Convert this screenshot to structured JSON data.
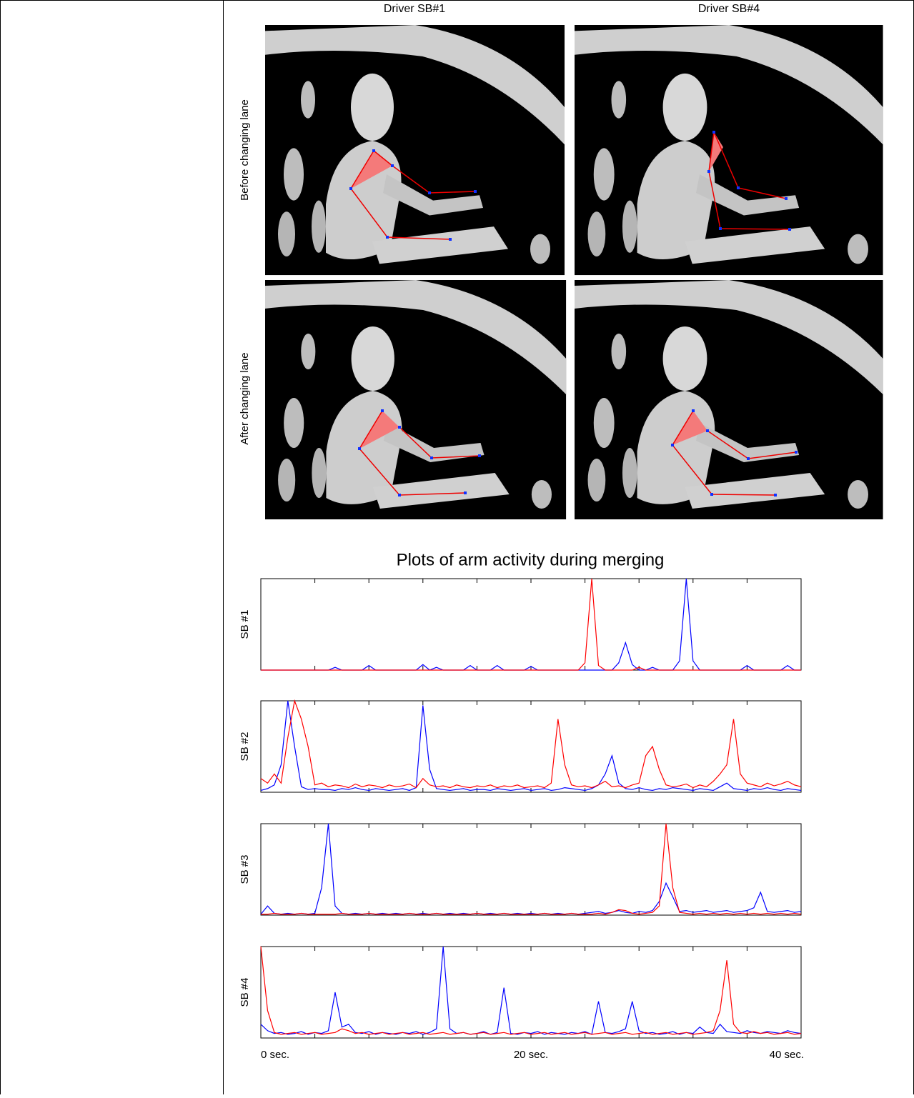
{
  "header": {
    "columns": [
      "Driver SB#1",
      "Driver SB#4"
    ]
  },
  "panels": {
    "row_labels": [
      "Before changing lane",
      "After changing lane"
    ]
  },
  "figure_title": "Plots of arm activity during merging",
  "chart_data": [
    {
      "type": "line",
      "ylabel": "SB #1",
      "xlim": [
        0,
        40
      ],
      "ylim": [
        0,
        1
      ],
      "xticks": [
        0,
        4,
        8,
        12,
        16,
        20,
        24,
        28,
        32,
        36,
        40
      ],
      "x": [
        0,
        0.5,
        1,
        1.5,
        2,
        2.5,
        3,
        3.5,
        4,
        4.5,
        5,
        5.5,
        6,
        6.5,
        7,
        7.5,
        8,
        8.5,
        9,
        9.5,
        10,
        10.5,
        11,
        11.5,
        12,
        12.5,
        13,
        13.5,
        14,
        14.5,
        15,
        15.5,
        16,
        16.5,
        17,
        17.5,
        18,
        18.5,
        19,
        19.5,
        20,
        20.5,
        21,
        21.5,
        22,
        22.5,
        23,
        23.5,
        24,
        24.5,
        25,
        25.5,
        26,
        26.5,
        27,
        27.5,
        28,
        28.5,
        29,
        29.5,
        30,
        30.5,
        31,
        31.5,
        32,
        32.5,
        33,
        33.5,
        34,
        34.5,
        35,
        35.5,
        36,
        36.5,
        37,
        37.5,
        38,
        38.5,
        39,
        39.5,
        40
      ],
      "series": [
        {
          "color": "#0000ff",
          "values": [
            0,
            0,
            0,
            0,
            0,
            0,
            0,
            0,
            0,
            0,
            0,
            0.03,
            0,
            0,
            0,
            0,
            0.05,
            0,
            0,
            0,
            0,
            0,
            0,
            0,
            0.06,
            0,
            0.03,
            0,
            0,
            0,
            0,
            0.05,
            0,
            0,
            0,
            0.05,
            0,
            0,
            0,
            0,
            0.04,
            0,
            0,
            0,
            0,
            0,
            0,
            0,
            0,
            0,
            0,
            0,
            0,
            0.08,
            0.3,
            0.06,
            0,
            0,
            0.03,
            0,
            0,
            0,
            0.1,
            1,
            0.1,
            0,
            0,
            0,
            0,
            0,
            0,
            0,
            0.05,
            0,
            0,
            0,
            0,
            0,
            0.05,
            0,
            0
          ]
        },
        {
          "color": "#ff0000",
          "values": [
            0,
            0,
            0,
            0,
            0,
            0,
            0,
            0,
            0,
            0,
            0,
            0,
            0,
            0,
            0,
            0,
            0,
            0,
            0,
            0,
            0,
            0,
            0,
            0,
            0,
            0,
            0,
            0,
            0,
            0,
            0,
            0,
            0,
            0,
            0,
            0,
            0,
            0,
            0,
            0,
            0,
            0,
            0,
            0,
            0,
            0,
            0,
            0,
            0.08,
            1,
            0.05,
            0,
            0,
            0,
            0,
            0,
            0.03,
            0,
            0,
            0,
            0,
            0,
            0,
            0,
            0,
            0,
            0,
            0,
            0,
            0,
            0,
            0,
            0,
            0,
            0,
            0,
            0,
            0,
            0,
            0,
            0
          ]
        }
      ]
    },
    {
      "type": "line",
      "ylabel": "SB #2",
      "xlim": [
        0,
        40
      ],
      "ylim": [
        0,
        1
      ],
      "xticks": [
        0,
        4,
        8,
        12,
        16,
        20,
        24,
        28,
        32,
        36,
        40
      ],
      "x": [
        0,
        0.5,
        1,
        1.5,
        2,
        2.5,
        3,
        3.5,
        4,
        4.5,
        5,
        5.5,
        6,
        6.5,
        7,
        7.5,
        8,
        8.5,
        9,
        9.5,
        10,
        10.5,
        11,
        11.5,
        12,
        12.5,
        13,
        13.5,
        14,
        14.5,
        15,
        15.5,
        16,
        16.5,
        17,
        17.5,
        18,
        18.5,
        19,
        19.5,
        20,
        20.5,
        21,
        21.5,
        22,
        22.5,
        23,
        23.5,
        24,
        24.5,
        25,
        25.5,
        26,
        26.5,
        27,
        27.5,
        28,
        28.5,
        29,
        29.5,
        30,
        30.5,
        31,
        31.5,
        32,
        32.5,
        33,
        33.5,
        34,
        34.5,
        35,
        35.5,
        36,
        36.5,
        37,
        37.5,
        38,
        38.5,
        39,
        39.5,
        40
      ],
      "series": [
        {
          "color": "#0000ff",
          "values": [
            0.02,
            0.04,
            0.08,
            0.3,
            1,
            0.5,
            0.06,
            0.03,
            0.04,
            0.03,
            0.03,
            0.02,
            0.04,
            0.03,
            0.05,
            0.03,
            0.02,
            0.04,
            0.03,
            0.02,
            0.03,
            0.04,
            0.02,
            0.05,
            0.95,
            0.25,
            0.04,
            0.03,
            0.02,
            0.03,
            0.04,
            0.02,
            0.03,
            0.03,
            0.02,
            0.04,
            0.03,
            0.02,
            0.03,
            0.04,
            0.02,
            0.03,
            0.04,
            0.02,
            0.03,
            0.05,
            0.04,
            0.03,
            0.02,
            0.04,
            0.08,
            0.2,
            0.4,
            0.1,
            0.04,
            0.03,
            0.05,
            0.03,
            0.02,
            0.04,
            0.03,
            0.05,
            0.04,
            0.03,
            0.02,
            0.04,
            0.03,
            0.02,
            0.06,
            0.1,
            0.04,
            0.03,
            0.02,
            0.04,
            0.03,
            0.05,
            0.03,
            0.02,
            0.04,
            0.03,
            0.02
          ]
        },
        {
          "color": "#ff0000",
          "values": [
            0.15,
            0.1,
            0.2,
            0.1,
            0.6,
            1,
            0.8,
            0.5,
            0.08,
            0.1,
            0.06,
            0.08,
            0.07,
            0.05,
            0.09,
            0.06,
            0.08,
            0.07,
            0.05,
            0.08,
            0.06,
            0.07,
            0.09,
            0.05,
            0.15,
            0.08,
            0.06,
            0.07,
            0.05,
            0.08,
            0.06,
            0.05,
            0.07,
            0.06,
            0.08,
            0.05,
            0.07,
            0.06,
            0.08,
            0.05,
            0.06,
            0.07,
            0.05,
            0.1,
            0.8,
            0.3,
            0.08,
            0.06,
            0.07,
            0.05,
            0.08,
            0.12,
            0.06,
            0.07,
            0.05,
            0.08,
            0.1,
            0.4,
            0.5,
            0.25,
            0.08,
            0.06,
            0.07,
            0.09,
            0.05,
            0.08,
            0.06,
            0.12,
            0.2,
            0.3,
            0.8,
            0.2,
            0.1,
            0.08,
            0.06,
            0.1,
            0.07,
            0.09,
            0.12,
            0.08,
            0.06
          ]
        }
      ]
    },
    {
      "type": "line",
      "ylabel": "SB #3",
      "xlim": [
        0,
        40
      ],
      "ylim": [
        0,
        1
      ],
      "xticks": [
        0,
        4,
        8,
        12,
        16,
        20,
        24,
        28,
        32,
        36,
        40
      ],
      "x": [
        0,
        0.5,
        1,
        1.5,
        2,
        2.5,
        3,
        3.5,
        4,
        4.5,
        5,
        5.5,
        6,
        6.5,
        7,
        7.5,
        8,
        8.5,
        9,
        9.5,
        10,
        10.5,
        11,
        11.5,
        12,
        12.5,
        13,
        13.5,
        14,
        14.5,
        15,
        15.5,
        16,
        16.5,
        17,
        17.5,
        18,
        18.5,
        19,
        19.5,
        20,
        20.5,
        21,
        21.5,
        22,
        22.5,
        23,
        23.5,
        24,
        24.5,
        25,
        25.5,
        26,
        26.5,
        27,
        27.5,
        28,
        28.5,
        29,
        29.5,
        30,
        30.5,
        31,
        31.5,
        32,
        32.5,
        33,
        33.5,
        34,
        34.5,
        35,
        35.5,
        36,
        36.5,
        37,
        37.5,
        38,
        38.5,
        39,
        39.5,
        40
      ],
      "series": [
        {
          "color": "#0000ff",
          "values": [
            0.01,
            0.1,
            0.02,
            0.01,
            0.02,
            0.01,
            0.02,
            0.01,
            0.02,
            0.3,
            1,
            0.1,
            0.02,
            0.01,
            0.02,
            0.01,
            0.02,
            0.01,
            0.02,
            0.01,
            0.02,
            0.01,
            0.02,
            0.01,
            0.02,
            0.01,
            0.02,
            0.01,
            0.02,
            0.01,
            0.02,
            0.01,
            0.02,
            0.01,
            0.02,
            0.01,
            0.02,
            0.01,
            0.02,
            0.01,
            0.02,
            0.01,
            0.02,
            0.01,
            0.02,
            0.01,
            0.02,
            0.01,
            0.02,
            0.03,
            0.04,
            0.02,
            0.03,
            0.05,
            0.03,
            0.02,
            0.04,
            0.03,
            0.05,
            0.15,
            0.35,
            0.2,
            0.04,
            0.05,
            0.03,
            0.04,
            0.05,
            0.03,
            0.04,
            0.05,
            0.03,
            0.04,
            0.05,
            0.08,
            0.25,
            0.04,
            0.03,
            0.04,
            0.05,
            0.03,
            0.04
          ]
        },
        {
          "color": "#ff0000",
          "values": [
            0.01,
            0.01,
            0.02,
            0.01,
            0.01,
            0.01,
            0.02,
            0.01,
            0.01,
            0.01,
            0.01,
            0.01,
            0.02,
            0.01,
            0.01,
            0.01,
            0.02,
            0.01,
            0.01,
            0.01,
            0.01,
            0.01,
            0.02,
            0.01,
            0.01,
            0.01,
            0.02,
            0.01,
            0.01,
            0.01,
            0.01,
            0.01,
            0.02,
            0.01,
            0.01,
            0.01,
            0.02,
            0.01,
            0.01,
            0.01,
            0.01,
            0.01,
            0.02,
            0.01,
            0.01,
            0.01,
            0.02,
            0.01,
            0.01,
            0.01,
            0.02,
            0.01,
            0.03,
            0.06,
            0.05,
            0.02,
            0.01,
            0.02,
            0.03,
            0.1,
            1,
            0.3,
            0.03,
            0.02,
            0.01,
            0.02,
            0.01,
            0.02,
            0.01,
            0.02,
            0.01,
            0.02,
            0.01,
            0.02,
            0.01,
            0.02,
            0.01,
            0.02,
            0.01,
            0.02,
            0.01
          ]
        }
      ]
    },
    {
      "type": "line",
      "ylabel": "SB #4",
      "xlim": [
        0,
        40
      ],
      "ylim": [
        0,
        1
      ],
      "xticks": [
        0,
        4,
        8,
        12,
        16,
        20,
        24,
        28,
        32,
        36,
        40
      ],
      "xtick_labels": [
        {
          "value": 0,
          "label": "0 sec."
        },
        {
          "value": 20,
          "label": "20 sec."
        },
        {
          "value": 40,
          "label": "40 sec."
        }
      ],
      "x": [
        0,
        0.5,
        1,
        1.5,
        2,
        2.5,
        3,
        3.5,
        4,
        4.5,
        5,
        5.5,
        6,
        6.5,
        7,
        7.5,
        8,
        8.5,
        9,
        9.5,
        10,
        10.5,
        11,
        11.5,
        12,
        12.5,
        13,
        13.5,
        14,
        14.5,
        15,
        15.5,
        16,
        16.5,
        17,
        17.5,
        18,
        18.5,
        19,
        19.5,
        20,
        20.5,
        21,
        21.5,
        22,
        22.5,
        23,
        23.5,
        24,
        24.5,
        25,
        25.5,
        26,
        26.5,
        27,
        27.5,
        28,
        28.5,
        29,
        29.5,
        30,
        30.5,
        31,
        31.5,
        32,
        32.5,
        33,
        33.5,
        34,
        34.5,
        35,
        35.5,
        36,
        36.5,
        37,
        37.5,
        38,
        38.5,
        39,
        39.5,
        40
      ],
      "series": [
        {
          "color": "#0000ff",
          "values": [
            0.15,
            0.08,
            0.05,
            0.06,
            0.04,
            0.05,
            0.07,
            0.04,
            0.06,
            0.05,
            0.08,
            0.5,
            0.12,
            0.15,
            0.06,
            0.05,
            0.07,
            0.04,
            0.06,
            0.05,
            0.04,
            0.06,
            0.05,
            0.07,
            0.04,
            0.06,
            0.1,
            1,
            0.1,
            0.05,
            0.06,
            0.04,
            0.05,
            0.07,
            0.04,
            0.06,
            0.55,
            0.05,
            0.04,
            0.06,
            0.05,
            0.07,
            0.04,
            0.06,
            0.05,
            0.04,
            0.06,
            0.05,
            0.07,
            0.04,
            0.4,
            0.06,
            0.05,
            0.07,
            0.1,
            0.4,
            0.08,
            0.05,
            0.06,
            0.04,
            0.05,
            0.07,
            0.04,
            0.06,
            0.05,
            0.12,
            0.06,
            0.05,
            0.15,
            0.07,
            0.06,
            0.05,
            0.08,
            0.06,
            0.05,
            0.07,
            0.06,
            0.05,
            0.08,
            0.06,
            0.05
          ]
        },
        {
          "color": "#ff0000",
          "values": [
            1,
            0.3,
            0.06,
            0.04,
            0.05,
            0.06,
            0.04,
            0.05,
            0.06,
            0.04,
            0.05,
            0.06,
            0.1,
            0.08,
            0.05,
            0.06,
            0.04,
            0.05,
            0.06,
            0.04,
            0.05,
            0.06,
            0.04,
            0.05,
            0.06,
            0.04,
            0.05,
            0.06,
            0.04,
            0.05,
            0.06,
            0.04,
            0.05,
            0.06,
            0.04,
            0.05,
            0.06,
            0.04,
            0.05,
            0.06,
            0.04,
            0.05,
            0.06,
            0.04,
            0.05,
            0.06,
            0.04,
            0.05,
            0.06,
            0.04,
            0.05,
            0.06,
            0.04,
            0.05,
            0.06,
            0.04,
            0.05,
            0.06,
            0.04,
            0.05,
            0.06,
            0.04,
            0.05,
            0.06,
            0.04,
            0.05,
            0.06,
            0.08,
            0.3,
            0.85,
            0.15,
            0.06,
            0.05,
            0.07,
            0.05,
            0.06,
            0.04,
            0.05,
            0.06,
            0.04,
            0.05
          ]
        }
      ]
    }
  ]
}
